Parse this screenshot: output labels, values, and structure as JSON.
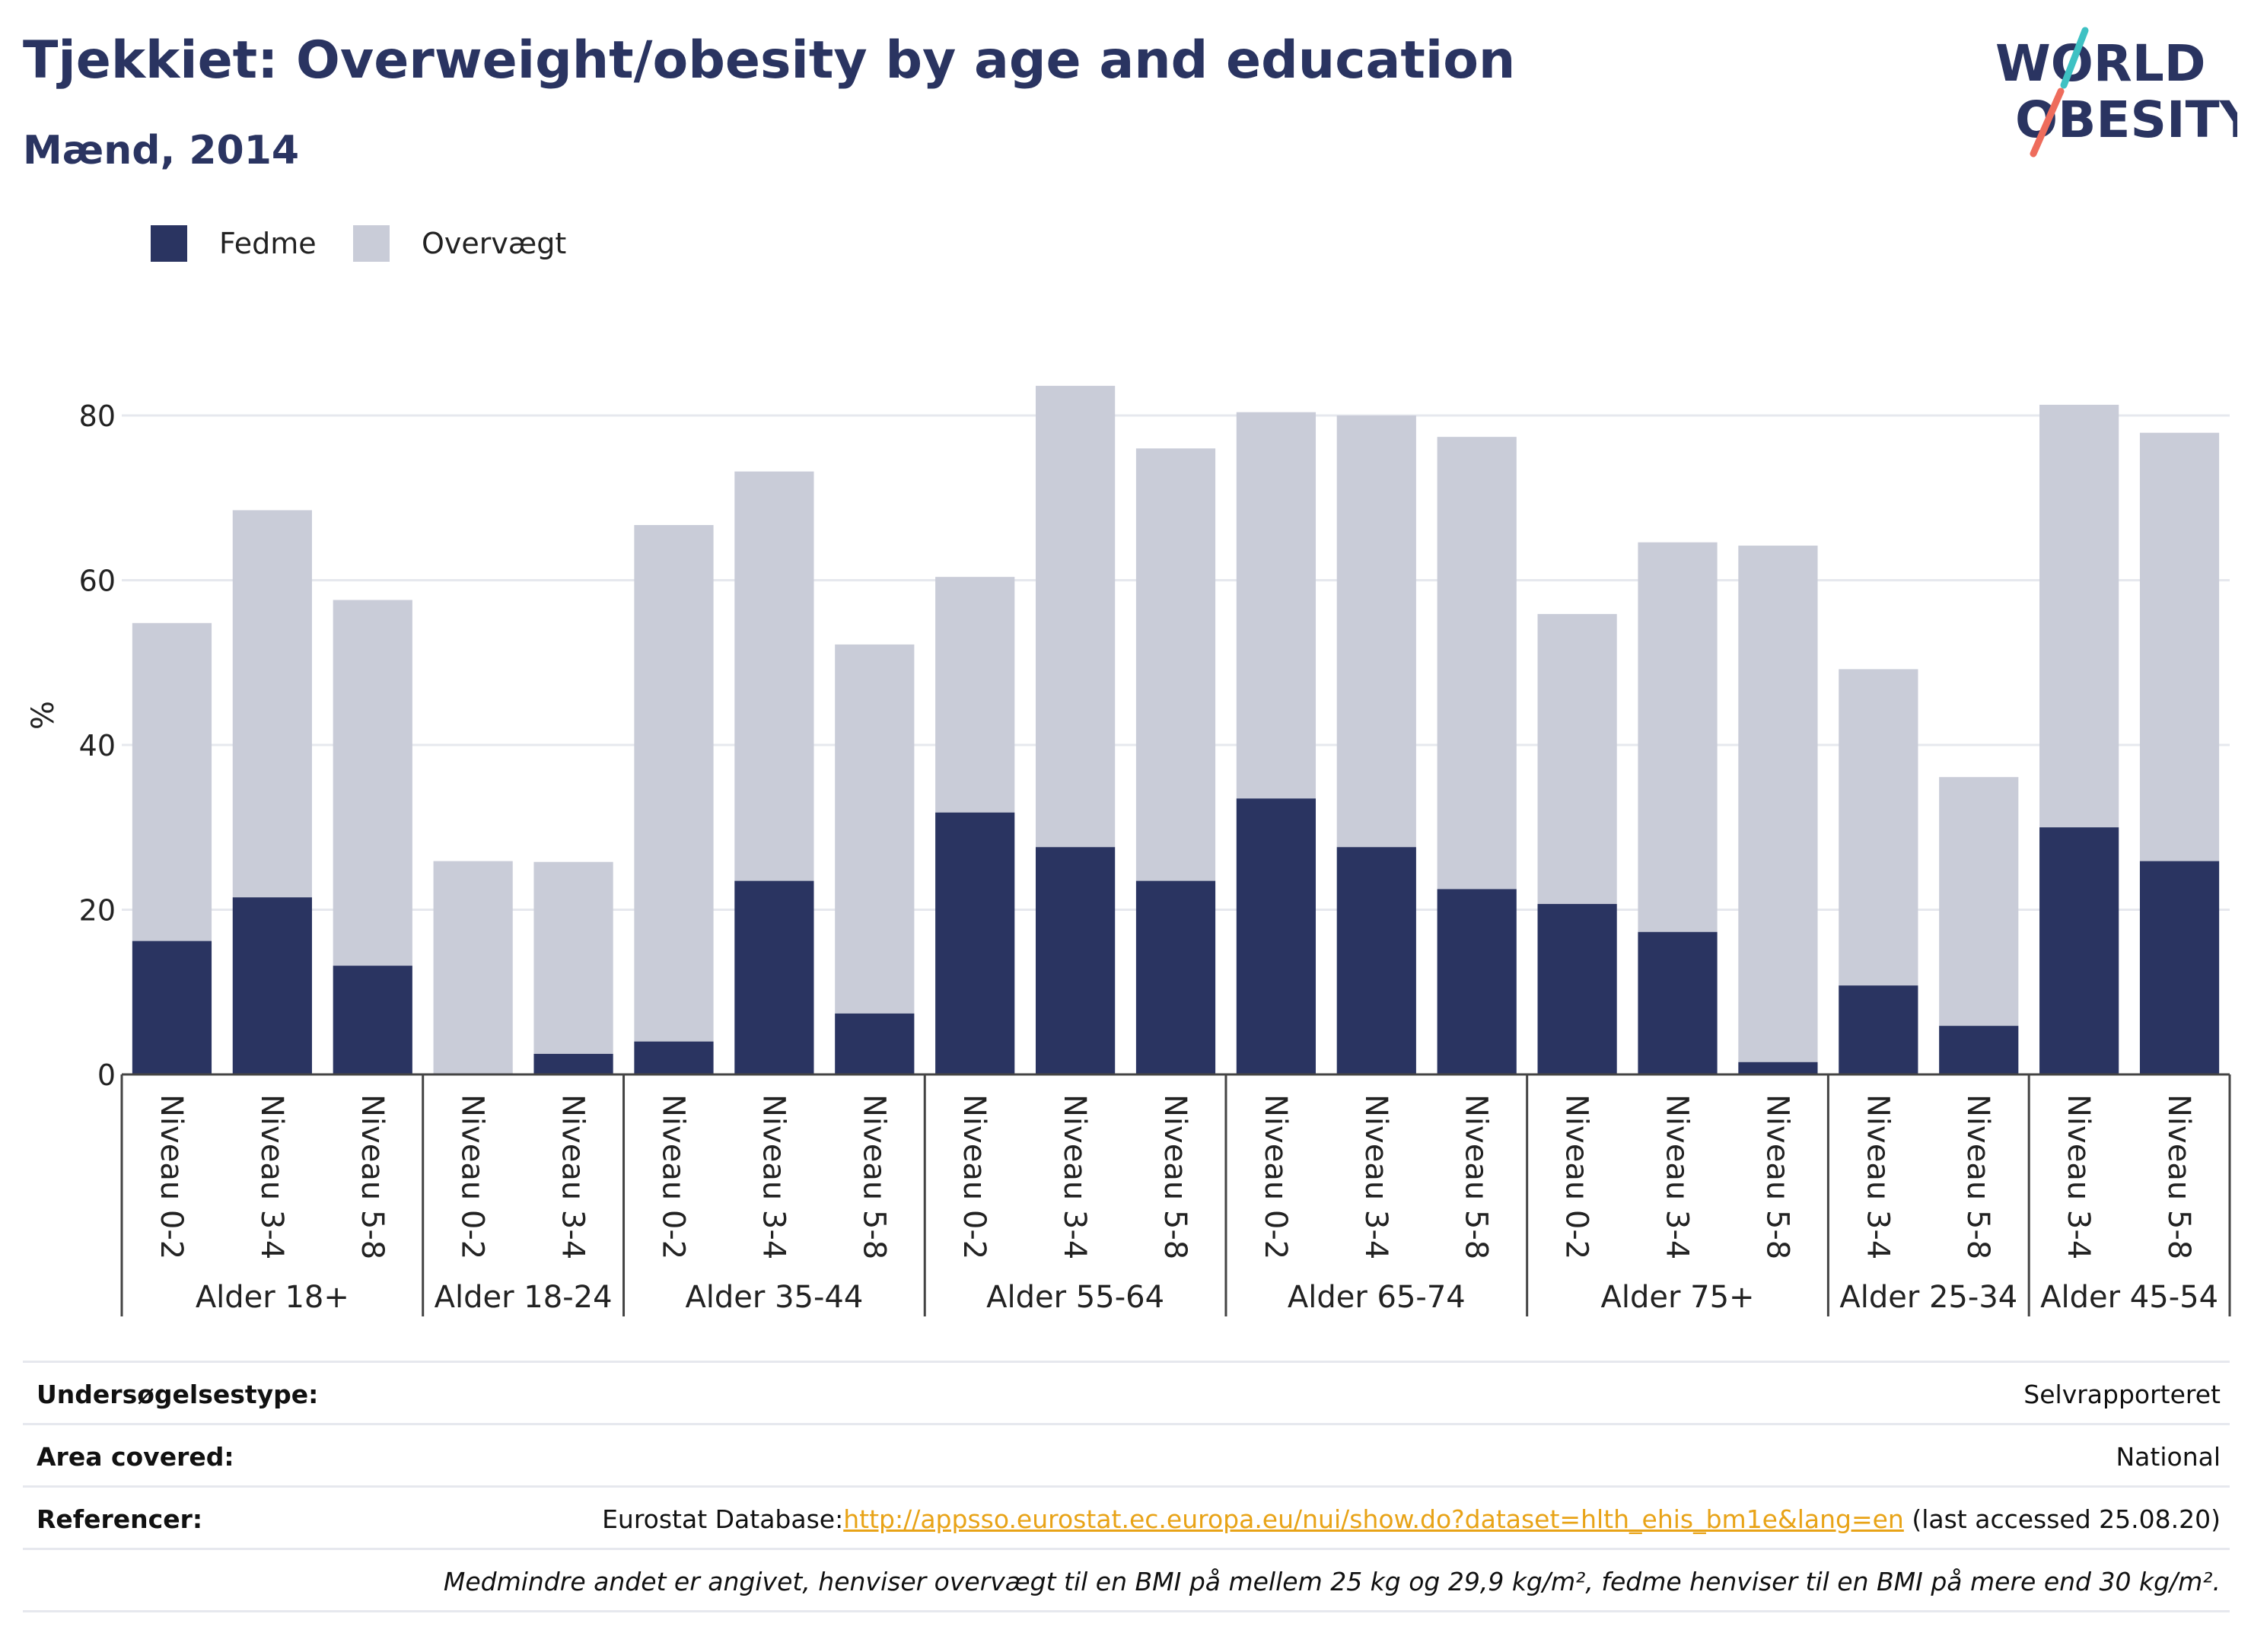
{
  "header": {
    "title": "Tjekkiet: Overweight/obesity by age and education",
    "subtitle": "Mænd, 2014",
    "logo_line1": "WORLD",
    "logo_line2": "OBESITY"
  },
  "colors": {
    "fedme": "#2a3461",
    "overvaegt": "#c9ccd8",
    "text": "#2a3461",
    "grid": "#e6e8ee",
    "logo_teal": "#3ec1c3",
    "logo_coral": "#ee6c5c"
  },
  "chart_data": {
    "type": "bar",
    "stacked": true,
    "ylabel": "%",
    "ylim": [
      0,
      90
    ],
    "yticks": [
      0,
      20,
      40,
      60,
      80
    ],
    "grid": true,
    "legend_position": "top-left",
    "groups": [
      {
        "label": "Alder 18+",
        "categories": [
          "Niveau 0-2",
          "Niveau 3-4",
          "Niveau 5-8"
        ]
      },
      {
        "label": "Alder 18-24",
        "categories": [
          "Niveau 0-2",
          "Niveau 3-4"
        ]
      },
      {
        "label": "Alder 35-44",
        "categories": [
          "Niveau 0-2",
          "Niveau 3-4",
          "Niveau 5-8"
        ]
      },
      {
        "label": "Alder 55-64",
        "categories": [
          "Niveau 0-2",
          "Niveau 3-4",
          "Niveau 5-8"
        ]
      },
      {
        "label": "Alder 65-74",
        "categories": [
          "Niveau 0-2",
          "Niveau 3-4",
          "Niveau 5-8"
        ]
      },
      {
        "label": "Alder 75+",
        "categories": [
          "Niveau 0-2",
          "Niveau 3-4",
          "Niveau 5-8"
        ]
      },
      {
        "label": "Alder 25-34",
        "categories": [
          "Niveau 3-4",
          "Niveau 5-8"
        ]
      },
      {
        "label": "Alder 45-54",
        "categories": [
          "Niveau 3-4",
          "Niveau 5-8"
        ]
      }
    ],
    "series": [
      {
        "name": "Fedme",
        "values": [
          16.2,
          21.5,
          13.2,
          0,
          2.5,
          4.0,
          23.5,
          7.4,
          31.8,
          27.6,
          23.5,
          33.5,
          27.6,
          22.5,
          20.7,
          17.3,
          1.5,
          10.8,
          5.9,
          30.0,
          25.9
        ]
      },
      {
        "name": "Overvægt",
        "values": [
          38.6,
          47.0,
          44.4,
          25.9,
          23.3,
          62.7,
          49.7,
          44.8,
          28.6,
          56.0,
          52.5,
          46.9,
          52.4,
          54.9,
          35.2,
          47.3,
          62.7,
          38.4,
          30.2,
          51.3,
          52.0
        ]
      }
    ]
  },
  "info": {
    "survey_label": "Undersøgelsestype:",
    "survey_value": "Selvrapporteret",
    "area_label": "Area covered:",
    "area_value": "National",
    "ref_label": "Referencer:",
    "ref_prefix": "Eurostat Database:",
    "ref_link": "http://appsso.eurostat.ec.europa.eu/nui/show.do?dataset=hlth_ehis_bm1e&lang=en",
    "ref_suffix": " (last accessed 25.08.20)",
    "note": "Medmindre andet er angivet, henviser overvægt til en BMI på mellem 25 kg og 29,9 kg/m², fedme henviser til en BMI på mere end 30 kg/m²."
  }
}
